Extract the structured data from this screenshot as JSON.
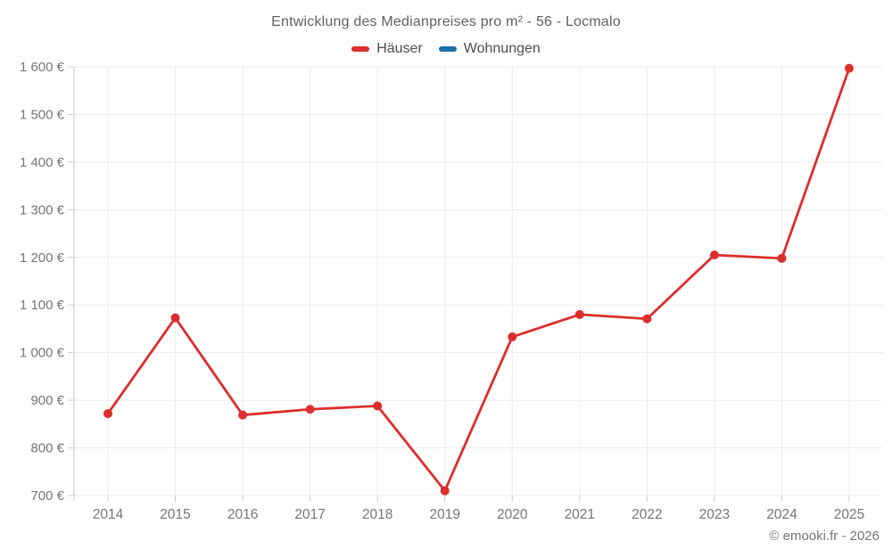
{
  "title": "Entwicklung des Medianpreises pro m² - 56 - Locmalo",
  "legend": {
    "items": [
      {
        "label": "Häuser",
        "color": "#dc2e2c"
      },
      {
        "label": "Wohnungen",
        "color": "#1c6ea4"
      }
    ]
  },
  "footer": "© emooki.fr - 2026",
  "colors": {
    "series_hauser": "#dc2e2c",
    "series_wohnungen": "#1c6ea4",
    "gridline": "#ececec",
    "axis_line": "#c9c9c9",
    "tick": "#c9c9c9",
    "axis_text": "#757575",
    "title_text": "#606060"
  },
  "chart_data": {
    "type": "line",
    "title": "Entwicklung des Medianpreises pro m² - 56 - Locmalo",
    "categories": [
      "2014",
      "2015",
      "2016",
      "2017",
      "2018",
      "2019",
      "2020",
      "2021",
      "2022",
      "2023",
      "2024",
      "2025"
    ],
    "series": [
      {
        "name": "Häuser",
        "color": "#dc2e2c",
        "values": [
          872,
          1073,
          869,
          881,
          888,
          710,
          1033,
          1080,
          1071,
          1205,
          1198,
          1597
        ]
      },
      {
        "name": "Wohnungen",
        "color": "#1c6ea4",
        "values": []
      }
    ],
    "xlabel": "",
    "ylabel": "",
    "ylim": [
      700,
      1600
    ],
    "y_tick_step": 100,
    "y_tick_labels": [
      "700 €",
      "800 €",
      "900 €",
      "1 000 €",
      "1 100 €",
      "1 200 €",
      "1 300 €",
      "1 400 €",
      "1 500 €",
      "1 600 €"
    ],
    "grid": true,
    "legend_position": "top",
    "currency_suffix": "€"
  }
}
